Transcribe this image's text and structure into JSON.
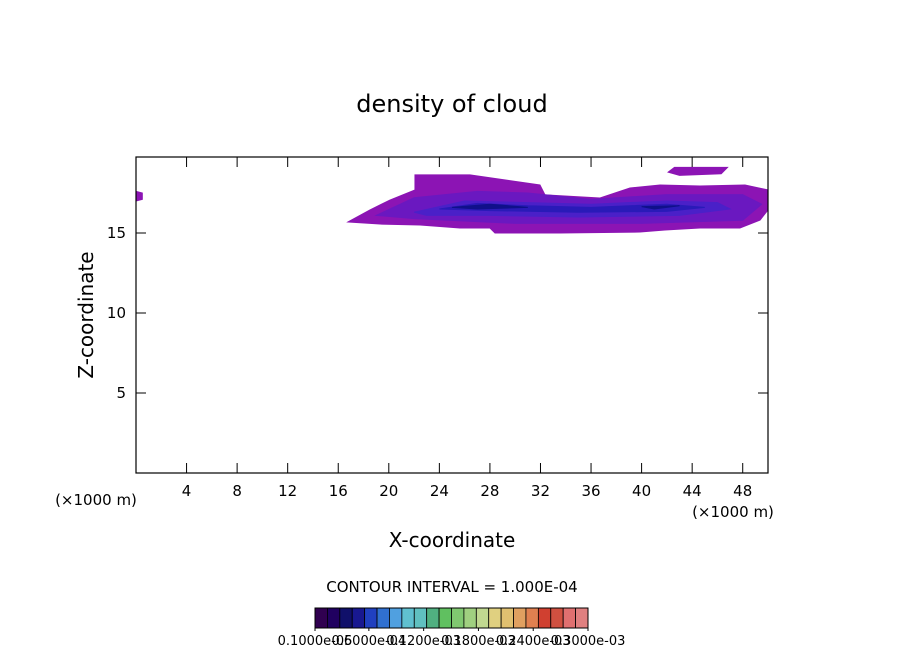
{
  "chart_data": {
    "type": "contour",
    "title": "density of cloud",
    "x_label": "X-coordinate",
    "y_label": "Z-coordinate",
    "x_unit_left": "(×1000 m)",
    "x_unit_right": "(×1000 m)",
    "annotation": "CONTOUR INTERVAL = 1.000E-04",
    "xlim": [
      0,
      50
    ],
    "ylim": [
      0,
      19.75
    ],
    "xticks": [
      4,
      8,
      12,
      16,
      20,
      24,
      28,
      32,
      36,
      40,
      44,
      48
    ],
    "yticks": [
      5,
      10,
      15
    ],
    "contours": [
      {
        "color": "#8c14b4",
        "x": [
          16.77,
          18.51,
          20.09,
          22.07,
          22.07,
          26.42,
          31.96,
          32.36,
          36.71,
          39.08,
          41.46,
          44.62,
          48.18,
          50,
          50,
          49.37,
          47.78,
          44.62,
          41.85,
          39.87,
          33.54,
          28.4,
          28.0,
          25.63,
          22.47,
          19.3
        ],
        "y": [
          15.69,
          16.44,
          17.06,
          17.69,
          18.63,
          18.63,
          18.0,
          17.38,
          17.19,
          17.81,
          18.0,
          17.94,
          18.0,
          17.69,
          16.44,
          15.81,
          15.31,
          15.31,
          15.19,
          15.06,
          15.0,
          15.0,
          15.31,
          15.31,
          15.5,
          15.56
        ]
      },
      {
        "color": "#8c14b4",
        "x": [
          42.1,
          42.6,
          46.8,
          46.3,
          43
        ],
        "y": [
          18.8,
          19.1,
          19.1,
          18.7,
          18.6
        ]
      },
      {
        "color": "#8c14b4",
        "x": [
          0,
          0.5,
          0.5,
          0
        ],
        "y": [
          17.6,
          17.5,
          17.1,
          17.0
        ]
      },
      {
        "color": "#6a18c0",
        "x": [
          19,
          22,
          27,
          31,
          36,
          42,
          48,
          49.5,
          48,
          40,
          30,
          22
        ],
        "y": [
          16.1,
          17.2,
          17.6,
          17.5,
          17.1,
          17.4,
          17.4,
          16.8,
          15.8,
          15.6,
          15.6,
          15.9
        ]
      },
      {
        "color": "#4a20c8",
        "x": [
          22,
          26,
          31,
          36,
          42,
          46,
          47,
          43,
          35,
          28,
          23
        ],
        "y": [
          16.3,
          17.0,
          16.9,
          16.8,
          17.0,
          16.9,
          16.5,
          16.1,
          16.0,
          16.1,
          16.1
        ]
      },
      {
        "color": "#2a1ab8",
        "x": [
          24,
          27,
          31,
          36,
          42,
          45,
          42,
          35,
          28
        ],
        "y": [
          16.5,
          16.85,
          16.7,
          16.6,
          16.8,
          16.6,
          16.35,
          16.3,
          16.4
        ]
      },
      {
        "color": "#10108a",
        "x": [
          25,
          28,
          31,
          27
        ],
        "y": [
          16.6,
          16.8,
          16.6,
          16.5
        ]
      },
      {
        "color": "#10108a",
        "x": [
          40,
          43,
          41
        ],
        "y": [
          16.65,
          16.7,
          16.5
        ]
      }
    ],
    "colorbar": {
      "clim": [
        1e-06,
        0.0003
      ],
      "ticks": [
        {
          "value": 1e-06,
          "label": "0.1000e-05"
        },
        {
          "value": 6e-05,
          "label": "0.6000e-04"
        },
        {
          "value": 0.00012,
          "label": "0.1200e-03"
        },
        {
          "value": 0.00018,
          "label": "0.1800e-03"
        },
        {
          "value": 0.00024,
          "label": "0.2400e-03"
        },
        {
          "value": 0.0003,
          "label": "0.3000e-03"
        }
      ],
      "colors": [
        "#300050",
        "#200060",
        "#10106a",
        "#181890",
        "#2040c0",
        "#3070d0",
        "#50a0e0",
        "#60c0d0",
        "#60c0c0",
        "#50b080",
        "#60c060",
        "#80c870",
        "#a0d080",
        "#c0d890",
        "#e0d080",
        "#e0c070",
        "#e0a060",
        "#e08050",
        "#d04030",
        "#d05040",
        "#e07070",
        "#e08080"
      ]
    }
  }
}
